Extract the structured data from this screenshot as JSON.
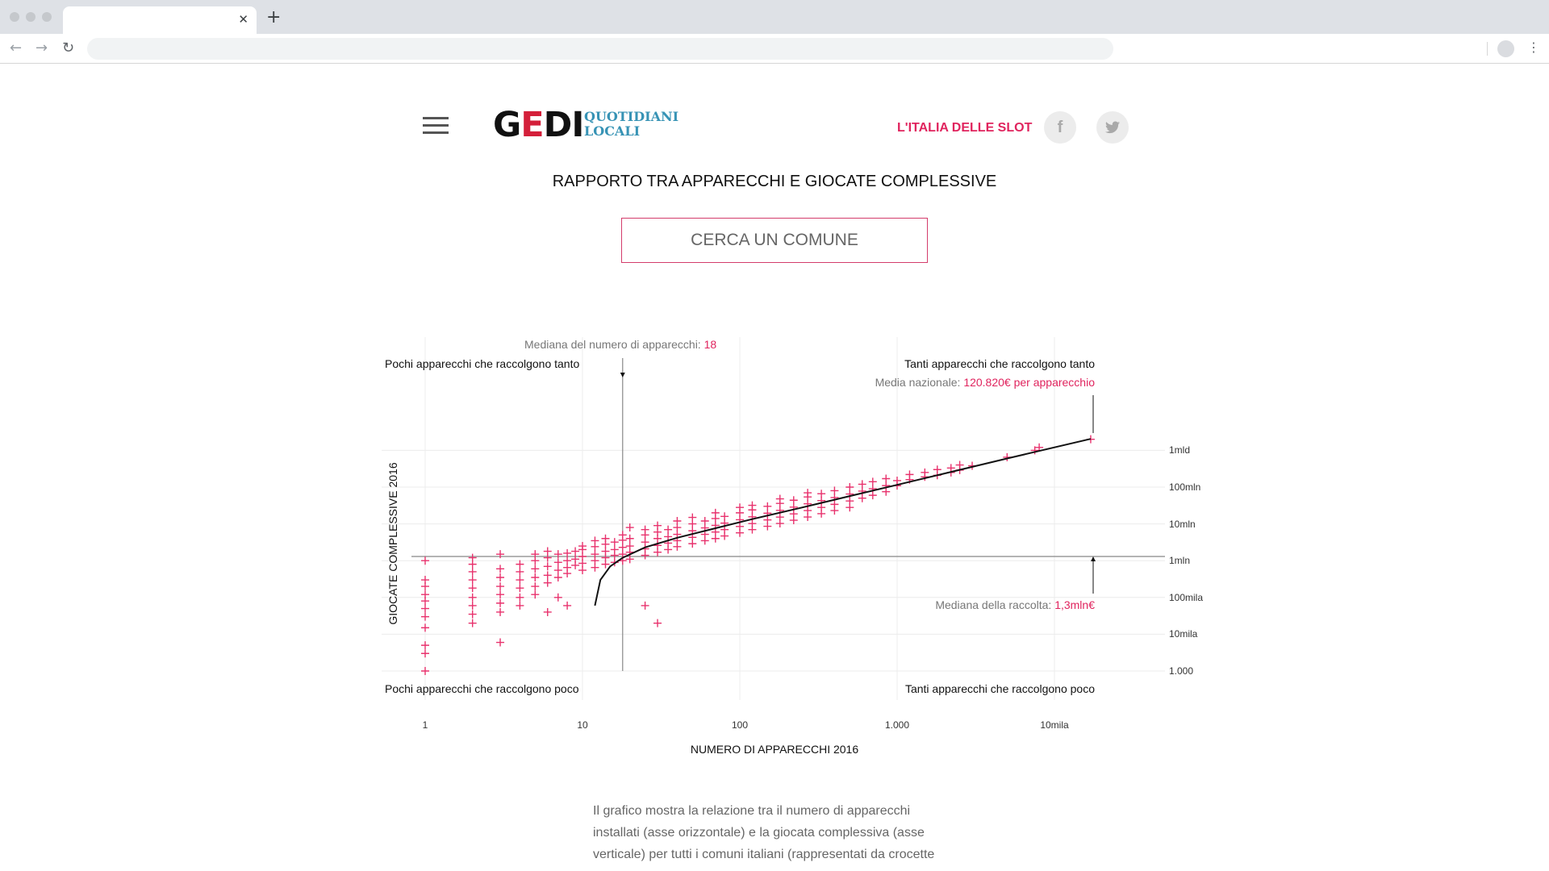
{
  "site": {
    "logo_main": "GEDI",
    "logo_sub_line1": "QUOTIDIANI",
    "logo_sub_line2": "LOCALI",
    "nav_link": "L'ITALIA DELLE SLOT",
    "facebook_label": "f"
  },
  "page": {
    "title": "RAPPORTO TRA APPARECCHI E GIOCATE COMPLESSIVE",
    "search_button": "CERCA UN COMUNE",
    "description": "Il grafico mostra la relazione tra il numero di apparecchi installati (asse orizzontale) e la giocata complessiva (asse verticale) per tutti i comuni italiani (rappresentati da crocette"
  },
  "annotations": {
    "median_devices_label": "Mediana del numero di apparecchi: ",
    "median_devices_value": "18",
    "top_left": "Pochi apparecchi che raccolgono tanto",
    "top_right": "Tanti apparecchi che raccolgono tanto",
    "national_avg_label": "Media nazionale: ",
    "national_avg_value": "120.820€ per apparecchio",
    "median_collection_label": "Mediana della raccolta: ",
    "median_collection_value": "1,3mln€",
    "bottom_left": "Pochi apparecchi che raccolgono poco",
    "bottom_right": "Tanti apparecchi che raccolgono poco"
  },
  "chart_data": {
    "type": "scatter",
    "xlabel": "NUMERO DI APPARECCHI 2016",
    "ylabel": "GIOCATE COMPLESSIVE 2016",
    "x_scale": "log",
    "y_scale": "log",
    "xlim": [
      1,
      18000
    ],
    "ylim": [
      1000,
      2000000000
    ],
    "x_ticks": [
      {
        "value": 1,
        "label": "1"
      },
      {
        "value": 10,
        "label": "10"
      },
      {
        "value": 100,
        "label": "100"
      },
      {
        "value": 1000,
        "label": "1.000"
      },
      {
        "value": 10000,
        "label": "10mila"
      }
    ],
    "y_ticks": [
      {
        "value": 1000,
        "label": "1.000"
      },
      {
        "value": 10000,
        "label": "10mila"
      },
      {
        "value": 100000,
        "label": "100mila"
      },
      {
        "value": 1000000,
        "label": "1mln"
      },
      {
        "value": 10000000,
        "label": "10mln"
      },
      {
        "value": 100000000,
        "label": "100mln"
      },
      {
        "value": 1000000000,
        "label": "1mld"
      }
    ],
    "median_devices": 18,
    "median_collection": 1300000,
    "national_avg_per_device": 120820,
    "marker_color": "#e8326d",
    "marker": "cross",
    "grid": true,
    "series": [
      {
        "values": [
          {
            "x": 1,
            "y": 300000
          },
          {
            "x": 1,
            "y": 200000
          },
          {
            "x": 1,
            "y": 120000
          },
          {
            "x": 1,
            "y": 80000
          },
          {
            "x": 1,
            "y": 50000
          },
          {
            "x": 1,
            "y": 30000
          },
          {
            "x": 1,
            "y": 15000
          },
          {
            "x": 1,
            "y": 5000
          },
          {
            "x": 1,
            "y": 3000
          },
          {
            "x": 1,
            "y": 1000000
          },
          {
            "x": 1,
            "y": 1000
          },
          {
            "x": 2,
            "y": 500000
          },
          {
            "x": 2,
            "y": 300000
          },
          {
            "x": 2,
            "y": 180000
          },
          {
            "x": 2,
            "y": 100000
          },
          {
            "x": 2,
            "y": 60000
          },
          {
            "x": 2,
            "y": 35000
          },
          {
            "x": 2,
            "y": 20000
          },
          {
            "x": 2,
            "y": 1200000
          },
          {
            "x": 2,
            "y": 800000
          },
          {
            "x": 3,
            "y": 600000
          },
          {
            "x": 3,
            "y": 350000
          },
          {
            "x": 3,
            "y": 200000
          },
          {
            "x": 3,
            "y": 120000
          },
          {
            "x": 3,
            "y": 70000
          },
          {
            "x": 3,
            "y": 40000
          },
          {
            "x": 3,
            "y": 1500000
          },
          {
            "x": 3,
            "y": 6000
          },
          {
            "x": 4,
            "y": 800000
          },
          {
            "x": 4,
            "y": 500000
          },
          {
            "x": 4,
            "y": 300000
          },
          {
            "x": 4,
            "y": 180000
          },
          {
            "x": 4,
            "y": 100000
          },
          {
            "x": 4,
            "y": 60000
          },
          {
            "x": 5,
            "y": 1000000
          },
          {
            "x": 5,
            "y": 600000
          },
          {
            "x": 5,
            "y": 350000
          },
          {
            "x": 5,
            "y": 200000
          },
          {
            "x": 5,
            "y": 120000
          },
          {
            "x": 5,
            "y": 1500000
          },
          {
            "x": 6,
            "y": 1200000
          },
          {
            "x": 6,
            "y": 700000
          },
          {
            "x": 6,
            "y": 400000
          },
          {
            "x": 6,
            "y": 250000
          },
          {
            "x": 6,
            "y": 1800000
          },
          {
            "x": 6,
            "y": 40000
          },
          {
            "x": 7,
            "y": 1500000
          },
          {
            "x": 7,
            "y": 900000
          },
          {
            "x": 7,
            "y": 550000
          },
          {
            "x": 7,
            "y": 350000
          },
          {
            "x": 7,
            "y": 100000
          },
          {
            "x": 8,
            "y": 1600000
          },
          {
            "x": 8,
            "y": 1000000
          },
          {
            "x": 8,
            "y": 650000
          },
          {
            "x": 8,
            "y": 450000
          },
          {
            "x": 8,
            "y": 60000
          },
          {
            "x": 9,
            "y": 1800000
          },
          {
            "x": 9,
            "y": 1100000
          },
          {
            "x": 9,
            "y": 750000
          },
          {
            "x": 10,
            "y": 2000000
          },
          {
            "x": 10,
            "y": 1300000
          },
          {
            "x": 10,
            "y": 850000
          },
          {
            "x": 10,
            "y": 550000
          },
          {
            "x": 10,
            "y": 2500000
          },
          {
            "x": 12,
            "y": 2400000
          },
          {
            "x": 12,
            "y": 1500000
          },
          {
            "x": 12,
            "y": 1000000
          },
          {
            "x": 12,
            "y": 650000
          },
          {
            "x": 12,
            "y": 3500000
          },
          {
            "x": 14,
            "y": 2800000
          },
          {
            "x": 14,
            "y": 1800000
          },
          {
            "x": 14,
            "y": 1200000
          },
          {
            "x": 14,
            "y": 800000
          },
          {
            "x": 14,
            "y": 4000000
          },
          {
            "x": 16,
            "y": 3200000
          },
          {
            "x": 16,
            "y": 2000000
          },
          {
            "x": 16,
            "y": 1400000
          },
          {
            "x": 16,
            "y": 900000
          },
          {
            "x": 18,
            "y": 3600000
          },
          {
            "x": 18,
            "y": 2300000
          },
          {
            "x": 18,
            "y": 1500000
          },
          {
            "x": 18,
            "y": 1000000
          },
          {
            "x": 18,
            "y": 5000000
          },
          {
            "x": 20,
            "y": 4000000
          },
          {
            "x": 20,
            "y": 2500000
          },
          {
            "x": 20,
            "y": 1700000
          },
          {
            "x": 20,
            "y": 1100000
          },
          {
            "x": 20,
            "y": 8000000
          },
          {
            "x": 25,
            "y": 5000000
          },
          {
            "x": 25,
            "y": 3200000
          },
          {
            "x": 25,
            "y": 2100000
          },
          {
            "x": 25,
            "y": 1400000
          },
          {
            "x": 25,
            "y": 7000000
          },
          {
            "x": 25,
            "y": 60000
          },
          {
            "x": 30,
            "y": 6000000
          },
          {
            "x": 30,
            "y": 4000000
          },
          {
            "x": 30,
            "y": 2600000
          },
          {
            "x": 30,
            "y": 1700000
          },
          {
            "x": 30,
            "y": 9000000
          },
          {
            "x": 30,
            "y": 20000
          },
          {
            "x": 35,
            "y": 7000000
          },
          {
            "x": 35,
            "y": 4500000
          },
          {
            "x": 35,
            "y": 3000000
          },
          {
            "x": 35,
            "y": 2000000
          },
          {
            "x": 40,
            "y": 8000000
          },
          {
            "x": 40,
            "y": 5200000
          },
          {
            "x": 40,
            "y": 3500000
          },
          {
            "x": 40,
            "y": 2400000
          },
          {
            "x": 40,
            "y": 12000000
          },
          {
            "x": 50,
            "y": 10000000
          },
          {
            "x": 50,
            "y": 6500000
          },
          {
            "x": 50,
            "y": 4300000
          },
          {
            "x": 50,
            "y": 2900000
          },
          {
            "x": 50,
            "y": 15000000
          },
          {
            "x": 60,
            "y": 12000000
          },
          {
            "x": 60,
            "y": 7800000
          },
          {
            "x": 60,
            "y": 5200000
          },
          {
            "x": 60,
            "y": 3500000
          },
          {
            "x": 70,
            "y": 14000000
          },
          {
            "x": 70,
            "y": 9100000
          },
          {
            "x": 70,
            "y": 6000000
          },
          {
            "x": 70,
            "y": 4000000
          },
          {
            "x": 70,
            "y": 20000000
          },
          {
            "x": 80,
            "y": 16000000
          },
          {
            "x": 80,
            "y": 10500000
          },
          {
            "x": 80,
            "y": 7000000
          },
          {
            "x": 80,
            "y": 4700000
          },
          {
            "x": 100,
            "y": 20000000
          },
          {
            "x": 100,
            "y": 13000000
          },
          {
            "x": 100,
            "y": 8500000
          },
          {
            "x": 100,
            "y": 5700000
          },
          {
            "x": 100,
            "y": 28000000
          },
          {
            "x": 120,
            "y": 24000000
          },
          {
            "x": 120,
            "y": 15600000
          },
          {
            "x": 120,
            "y": 10200000
          },
          {
            "x": 120,
            "y": 7000000
          },
          {
            "x": 120,
            "y": 32000000
          },
          {
            "x": 150,
            "y": 30000000
          },
          {
            "x": 150,
            "y": 19500000
          },
          {
            "x": 150,
            "y": 12800000
          },
          {
            "x": 150,
            "y": 8600000
          },
          {
            "x": 180,
            "y": 36000000
          },
          {
            "x": 180,
            "y": 23400000
          },
          {
            "x": 180,
            "y": 15300000
          },
          {
            "x": 180,
            "y": 10300000
          },
          {
            "x": 180,
            "y": 48000000
          },
          {
            "x": 220,
            "y": 44000000
          },
          {
            "x": 220,
            "y": 28600000
          },
          {
            "x": 220,
            "y": 18700000
          },
          {
            "x": 220,
            "y": 12600000
          },
          {
            "x": 270,
            "y": 54000000
          },
          {
            "x": 270,
            "y": 35100000
          },
          {
            "x": 270,
            "y": 23000000
          },
          {
            "x": 270,
            "y": 15400000
          },
          {
            "x": 270,
            "y": 70000000
          },
          {
            "x": 330,
            "y": 66000000
          },
          {
            "x": 330,
            "y": 43000000
          },
          {
            "x": 330,
            "y": 28000000
          },
          {
            "x": 330,
            "y": 19000000
          },
          {
            "x": 400,
            "y": 80000000
          },
          {
            "x": 400,
            "y": 52000000
          },
          {
            "x": 400,
            "y": 34000000
          },
          {
            "x": 400,
            "y": 23000000
          },
          {
            "x": 500,
            "y": 100000000
          },
          {
            "x": 500,
            "y": 65000000
          },
          {
            "x": 500,
            "y": 42000000
          },
          {
            "x": 500,
            "y": 28000000
          },
          {
            "x": 600,
            "y": 120000000
          },
          {
            "x": 600,
            "y": 78000000
          },
          {
            "x": 600,
            "y": 50000000
          },
          {
            "x": 700,
            "y": 140000000
          },
          {
            "x": 700,
            "y": 90000000
          },
          {
            "x": 700,
            "y": 60000000
          },
          {
            "x": 850,
            "y": 170000000
          },
          {
            "x": 850,
            "y": 110000000
          },
          {
            "x": 850,
            "y": 75000000
          },
          {
            "x": 1000,
            "y": 150000000
          },
          {
            "x": 1000,
            "y": 110000000
          },
          {
            "x": 1200,
            "y": 220000000
          },
          {
            "x": 1200,
            "y": 160000000
          },
          {
            "x": 1500,
            "y": 250000000
          },
          {
            "x": 1500,
            "y": 190000000
          },
          {
            "x": 1800,
            "y": 300000000
          },
          {
            "x": 1800,
            "y": 210000000
          },
          {
            "x": 2200,
            "y": 330000000
          },
          {
            "x": 2200,
            "y": 250000000
          },
          {
            "x": 2500,
            "y": 400000000
          },
          {
            "x": 2500,
            "y": 290000000
          },
          {
            "x": 3000,
            "y": 380000000
          },
          {
            "x": 5000,
            "y": 650000000
          },
          {
            "x": 7500,
            "y": 1000000000
          },
          {
            "x": 8000,
            "y": 1200000000
          },
          {
            "x": 17000,
            "y": 2000000000
          }
        ]
      }
    ],
    "trend_line": [
      {
        "x": 12,
        "y": 60000
      },
      {
        "x": 13,
        "y": 300000
      },
      {
        "x": 15,
        "y": 700000
      },
      {
        "x": 18,
        "y": 1200000
      },
      {
        "x": 25,
        "y": 2300000
      },
      {
        "x": 40,
        "y": 4200000
      },
      {
        "x": 70,
        "y": 7600000
      },
      {
        "x": 120,
        "y": 13500000
      },
      {
        "x": 250,
        "y": 28000000
      },
      {
        "x": 500,
        "y": 57000000
      },
      {
        "x": 1000,
        "y": 115000000
      },
      {
        "x": 2000,
        "y": 235000000
      },
      {
        "x": 5000,
        "y": 600000000
      },
      {
        "x": 17000,
        "y": 2050000000
      }
    ]
  }
}
